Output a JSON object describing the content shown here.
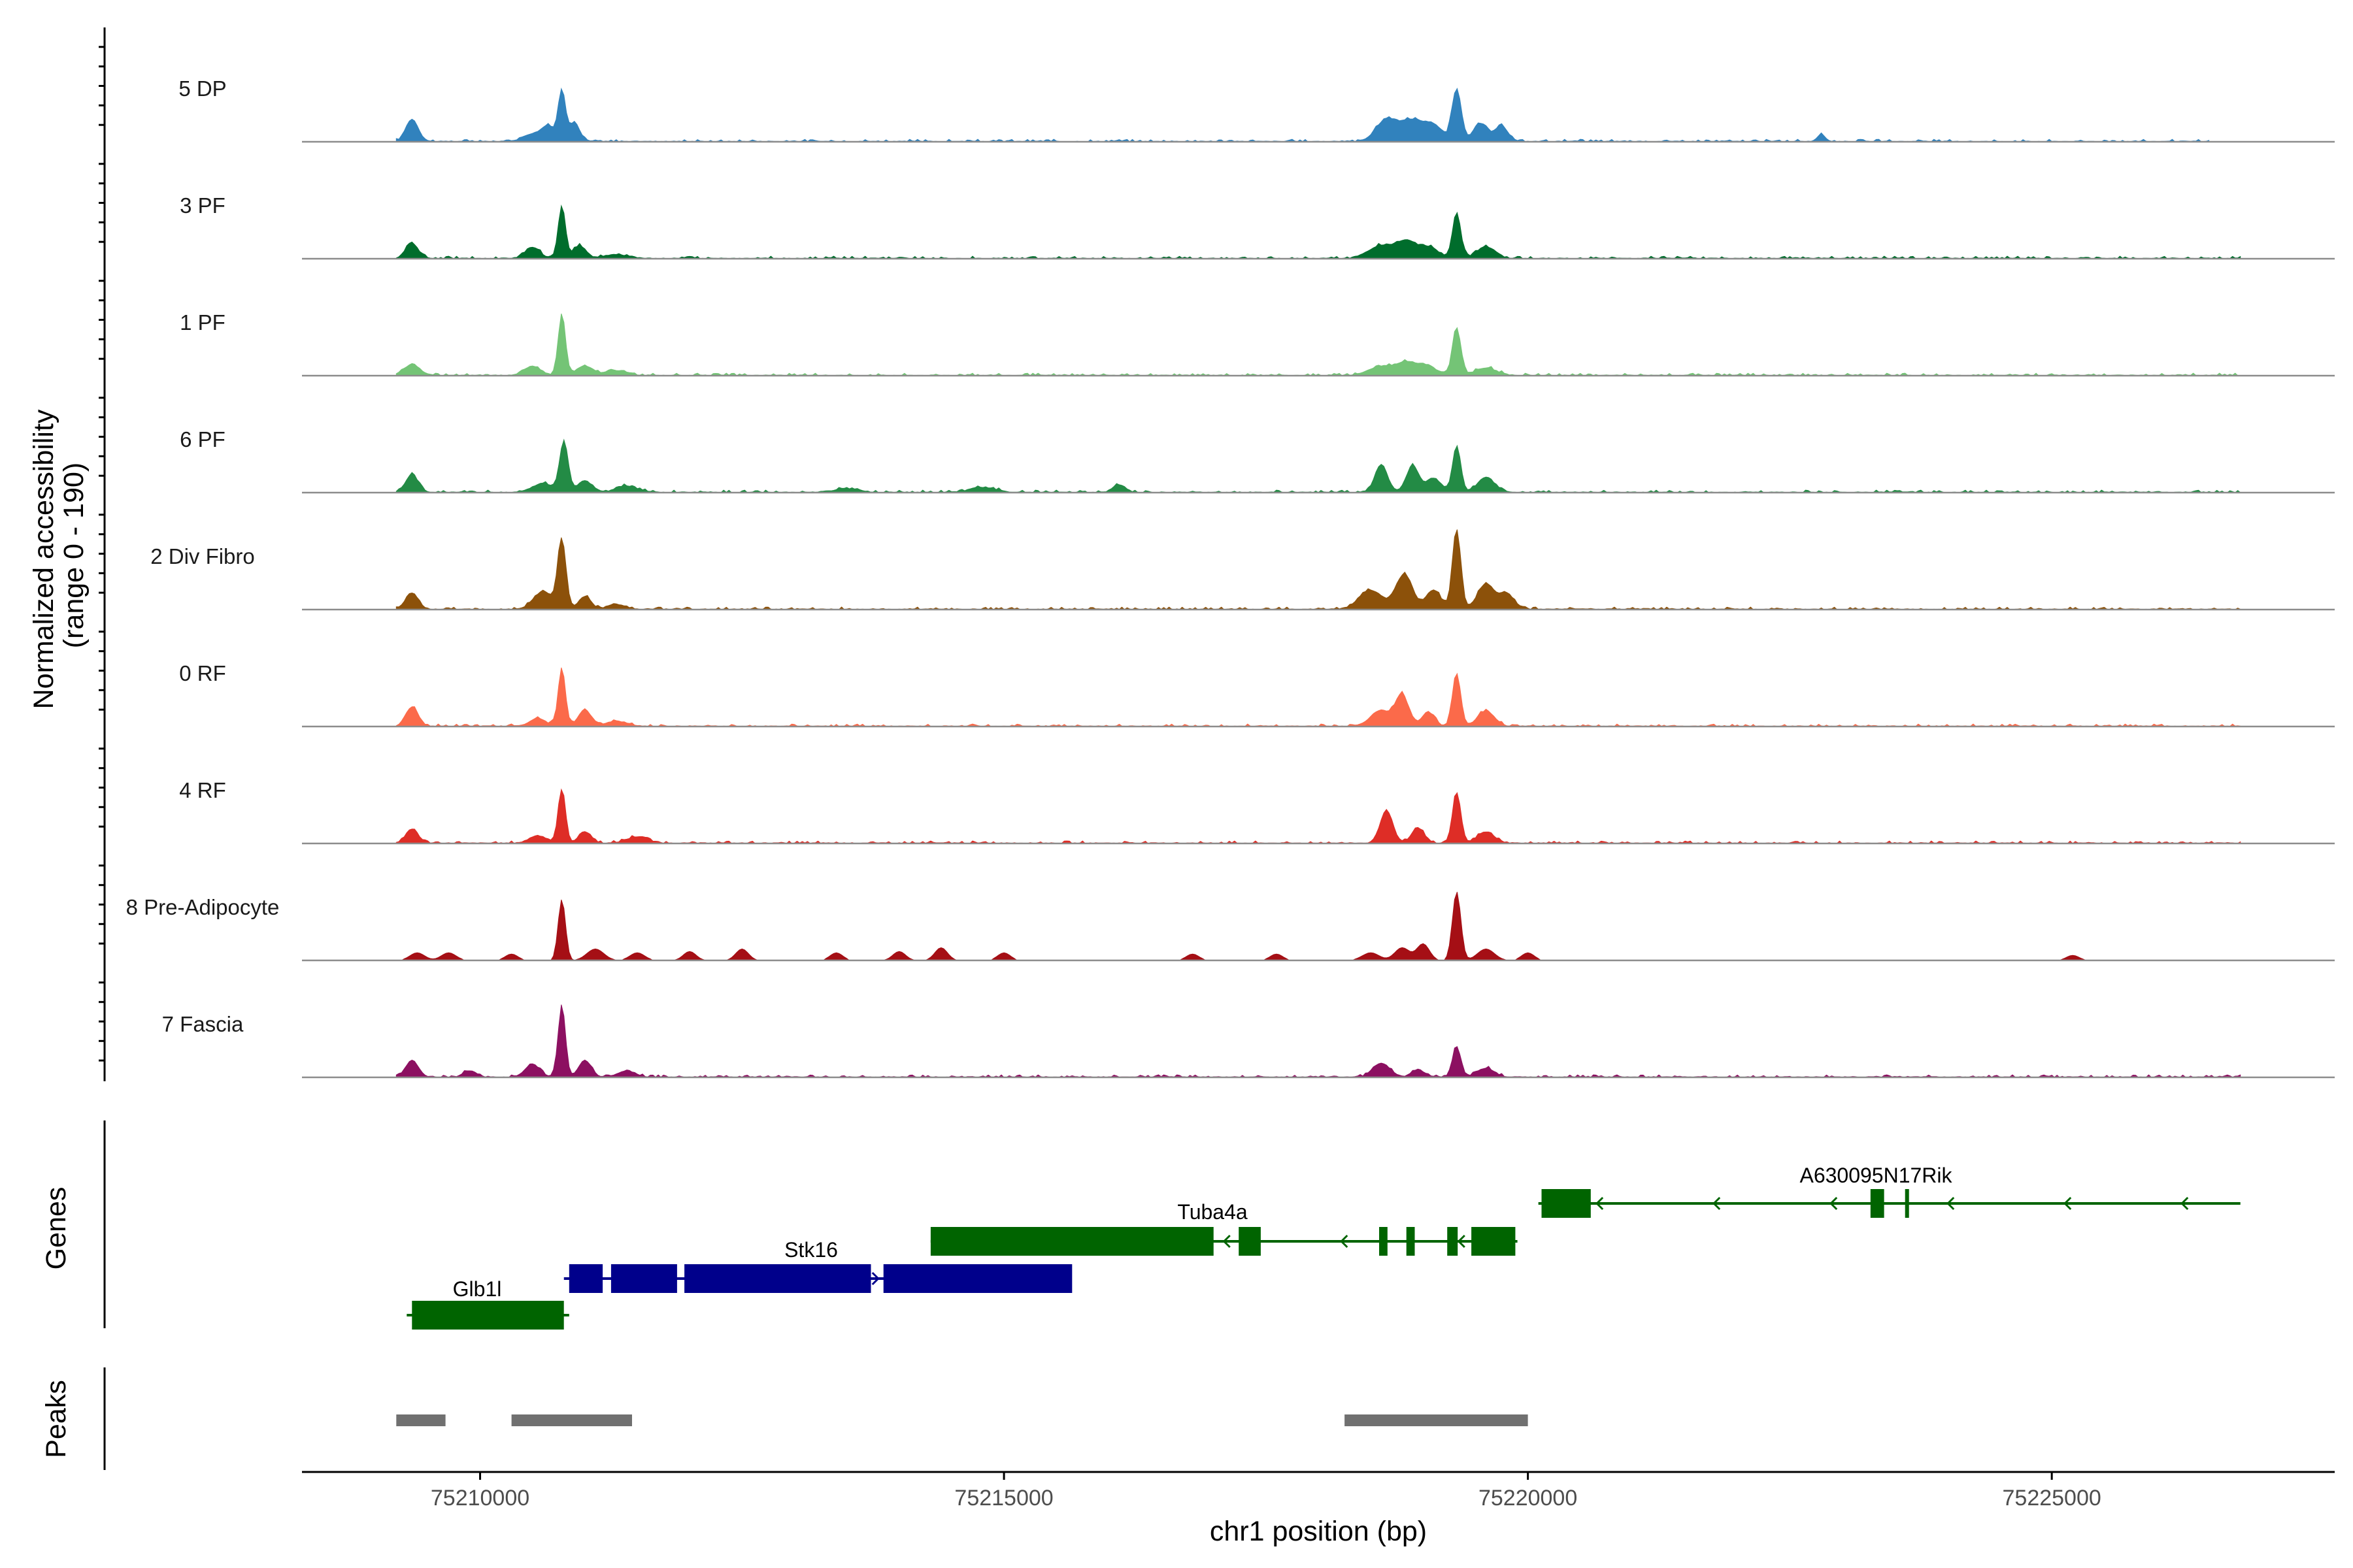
{
  "chart_data": {
    "type": "area",
    "title": "",
    "ylabel_line1": "Normalized accessibility",
    "ylabel_line2": "(range 0 - 190)",
    "y_range": [
      0,
      190
    ],
    "xlabel": "chr1 position (bp)",
    "xlim": [
      75208300,
      75227700
    ],
    "x_ticks": [
      75210000,
      75215000,
      75220000,
      75225000
    ],
    "x_tick_labels": [
      "75210000",
      "75215000",
      "75220000",
      "75225000"
    ],
    "region": [
      75209200,
      75226800
    ],
    "tracks": [
      {
        "name": "5 DP",
        "color": "#3182bd",
        "peaks": [
          [
            75209350,
            35,
            60
          ],
          [
            75210500,
            12,
            90
          ],
          [
            75210650,
            22,
            60
          ],
          [
            75210780,
            80,
            35
          ],
          [
            75210900,
            30,
            50
          ],
          [
            75218650,
            34,
            100
          ],
          [
            75218900,
            33,
            110
          ],
          [
            75219100,
            22,
            80
          ],
          [
            75219320,
            82,
            45
          ],
          [
            75219550,
            28,
            70
          ],
          [
            75219750,
            24,
            60
          ],
          [
            75222800,
            10,
            40
          ]
        ],
        "base": 4,
        "extent": [
          75209200,
          75226500
        ]
      },
      {
        "name": "3 PF",
        "color": "#006d2c",
        "peaks": [
          [
            75209350,
            24,
            60
          ],
          [
            75210500,
            18,
            70
          ],
          [
            75210780,
            82,
            35
          ],
          [
            75210950,
            20,
            60
          ],
          [
            75211300,
            6,
            120
          ],
          [
            75218600,
            20,
            120
          ],
          [
            75218850,
            26,
            100
          ],
          [
            75219070,
            16,
            80
          ],
          [
            75219320,
            70,
            40
          ],
          [
            75219600,
            18,
            90
          ]
        ],
        "base": 4,
        "extent": [
          75209200,
          75226800
        ]
      },
      {
        "name": "1 PF",
        "color": "#74c476",
        "peaks": [
          [
            75209350,
            18,
            70
          ],
          [
            75210500,
            14,
            80
          ],
          [
            75210780,
            95,
            35
          ],
          [
            75211000,
            14,
            80
          ],
          [
            75211300,
            8,
            100
          ],
          [
            75218600,
            14,
            120
          ],
          [
            75218850,
            20,
            100
          ],
          [
            75219050,
            14,
            80
          ],
          [
            75219320,
            75,
            40
          ],
          [
            75219600,
            12,
            100
          ]
        ],
        "base": 4,
        "extent": [
          75209200,
          75226800
        ]
      },
      {
        "name": "6 PF",
        "color": "#238b45",
        "peaks": [
          [
            75209350,
            28,
            60
          ],
          [
            75210600,
            14,
            100
          ],
          [
            75210800,
            80,
            40
          ],
          [
            75211000,
            18,
            70
          ],
          [
            75211400,
            10,
            100
          ],
          [
            75218600,
            44,
            60
          ],
          [
            75218900,
            42,
            60
          ],
          [
            75219100,
            22,
            70
          ],
          [
            75219320,
            70,
            40
          ],
          [
            75219600,
            24,
            80
          ],
          [
            75213500,
            6,
            120
          ],
          [
            75214800,
            8,
            120
          ],
          [
            75216100,
            12,
            60
          ]
        ],
        "base": 4,
        "extent": [
          75209200,
          75226800
        ]
      },
      {
        "name": "2 Div Fibro",
        "color": "#8c510a",
        "peaks": [
          [
            75209350,
            26,
            60
          ],
          [
            75210600,
            28,
            90
          ],
          [
            75210780,
            108,
            40
          ],
          [
            75211000,
            20,
            60
          ],
          [
            75211300,
            8,
            80
          ],
          [
            75218500,
            30,
            110
          ],
          [
            75218820,
            55,
            80
          ],
          [
            75219100,
            30,
            70
          ],
          [
            75219320,
            125,
            40
          ],
          [
            75219600,
            40,
            80
          ],
          [
            75219800,
            24,
            70
          ]
        ],
        "base": 4,
        "extent": [
          75209200,
          75226800
        ]
      },
      {
        "name": "0 RF",
        "color": "#fb6a4a",
        "peaks": [
          [
            75209350,
            30,
            60
          ],
          [
            75210550,
            12,
            80
          ],
          [
            75210780,
            90,
            35
          ],
          [
            75211000,
            26,
            60
          ],
          [
            75211300,
            8,
            100
          ],
          [
            75218600,
            25,
            100
          ],
          [
            75218800,
            48,
            60
          ],
          [
            75219050,
            22,
            60
          ],
          [
            75219320,
            82,
            40
          ],
          [
            75219600,
            24,
            80
          ]
        ],
        "base": 4,
        "extent": [
          75209200,
          75226800
        ]
      },
      {
        "name": "4 RF",
        "color": "#de2d26",
        "peaks": [
          [
            75209350,
            22,
            60
          ],
          [
            75210550,
            12,
            80
          ],
          [
            75210780,
            85,
            35
          ],
          [
            75211000,
            18,
            60
          ],
          [
            75211500,
            10,
            100
          ],
          [
            75218650,
            52,
            60
          ],
          [
            75218950,
            24,
            60
          ],
          [
            75219320,
            80,
            40
          ],
          [
            75219600,
            18,
            80
          ]
        ],
        "base": 4,
        "extent": [
          75209200,
          75226800
        ]
      },
      {
        "name": "8 Pre-Adipocyte",
        "color": "#a50f15",
        "peaks": [
          [
            75209400,
            12,
            70
          ],
          [
            75209700,
            12,
            70
          ],
          [
            75210300,
            10,
            60
          ],
          [
            75210780,
            96,
            35
          ],
          [
            75211100,
            18,
            80
          ],
          [
            75211500,
            12,
            70
          ],
          [
            75212000,
            14,
            60
          ],
          [
            75212500,
            18,
            60
          ],
          [
            75213400,
            12,
            60
          ],
          [
            75214000,
            14,
            60
          ],
          [
            75214400,
            20,
            60
          ],
          [
            75215000,
            12,
            60
          ],
          [
            75216800,
            10,
            60
          ],
          [
            75217600,
            10,
            60
          ],
          [
            75218500,
            12,
            80
          ],
          [
            75218800,
            20,
            70
          ],
          [
            75219000,
            26,
            60
          ],
          [
            75219320,
            108,
            40
          ],
          [
            75219600,
            18,
            80
          ],
          [
            75220000,
            12,
            60
          ],
          [
            75225200,
            8,
            60
          ]
        ],
        "base": 0,
        "extent": [
          75209200,
          75226800
        ]
      },
      {
        "name": "7 Fascia",
        "color": "#8c1061",
        "peaks": [
          [
            75209350,
            26,
            60
          ],
          [
            75209900,
            10,
            60
          ],
          [
            75210500,
            20,
            70
          ],
          [
            75210780,
            112,
            35
          ],
          [
            75211000,
            26,
            60
          ],
          [
            75211400,
            10,
            80
          ],
          [
            75218600,
            22,
            80
          ],
          [
            75218950,
            12,
            60
          ],
          [
            75219320,
            48,
            40
          ],
          [
            75219600,
            14,
            80
          ]
        ],
        "base": 4,
        "extent": [
          75209200,
          75226800
        ]
      }
    ],
    "genes": [
      {
        "name": "Glb1l",
        "color": "#006400",
        "strand": "-",
        "row": 3,
        "start": 75209300,
        "end": 75210850,
        "exons": [
          [
            75209350,
            75210800
          ]
        ]
      },
      {
        "name": "Stk16",
        "color": "#00008b",
        "strand": "+",
        "row": 2,
        "start": 75210800,
        "end": 75215600,
        "exons": [
          [
            75210850,
            75211170
          ],
          [
            75211250,
            75211880
          ],
          [
            75211950,
            75213730
          ],
          [
            75213850,
            75215650
          ]
        ]
      },
      {
        "name": "Tuba4a",
        "color": "#006400",
        "strand": "-",
        "row": 1,
        "start": 75214300,
        "end": 75219900,
        "exons": [
          [
            75214300,
            75217000
          ],
          [
            75217240,
            75217450
          ],
          [
            75218580,
            75218660
          ],
          [
            75218840,
            75218920
          ],
          [
            75219230,
            75219330
          ],
          [
            75219460,
            75219880
          ]
        ]
      },
      {
        "name": "A630095N17Rik",
        "color": "#006400",
        "strand": "-",
        "row": 0,
        "start": 75220100,
        "end": 75226800,
        "exons": [
          [
            75220130,
            75220600
          ],
          [
            75223270,
            75223400
          ],
          [
            75223600,
            75223630
          ]
        ]
      }
    ],
    "peaks_track": [
      [
        75209200,
        75209670
      ],
      [
        75210300,
        75211450
      ],
      [
        75218250,
        75220000
      ]
    ],
    "panel_labels": {
      "genes": "Genes",
      "peaks": "Peaks"
    },
    "colors": {
      "baseline": "#8c8c8c",
      "peak_bar": "#707070",
      "axis": "#000000"
    }
  }
}
